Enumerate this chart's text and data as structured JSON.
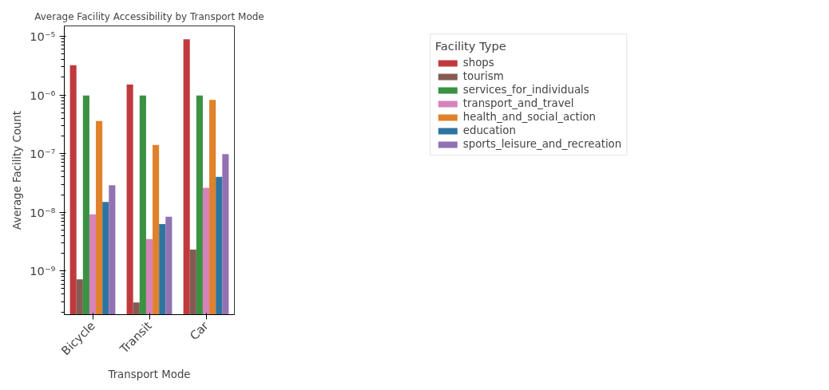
{
  "chart_data": {
    "type": "bar",
    "title": "Average Facility Accessibility by Transport Mode",
    "xlabel": "Transport Mode",
    "ylabel": "Average Facility Count",
    "legend_title": "Facility Type",
    "categories": [
      "Bicycle",
      "Transit",
      "Car"
    ],
    "series": [
      {
        "name": "shops",
        "color": "#c03a3d",
        "values": [
          3.2e-06,
          1.5e-06,
          8.9e-06
        ]
      },
      {
        "name": "tourism",
        "color": "#845b53",
        "values": [
          7.2e-10,
          2.9e-10,
          2.3e-09
        ]
      },
      {
        "name": "services_for_individuals",
        "color": "#3a9242",
        "values": [
          9.8e-07,
          9.8e-07,
          9.8e-07
        ]
      },
      {
        "name": "transport_and_travel",
        "color": "#d683b9",
        "values": [
          9.2e-09,
          3.5e-09,
          2.6e-08
        ]
      },
      {
        "name": "health_and_social_action",
        "color": "#e0812b",
        "values": [
          3.6e-07,
          1.4e-07,
          8.2e-07
        ]
      },
      {
        "name": "education",
        "color": "#2f74a1",
        "values": [
          1.5e-08,
          6.3e-09,
          4e-08
        ]
      },
      {
        "name": "sports_leisure_and_recreation",
        "color": "#9272b1",
        "values": [
          2.9e-08,
          8.4e-09,
          9.8e-08
        ]
      }
    ],
    "log": "y",
    "ylim": [
      1.8e-10,
      1.5e-05
    ],
    "yticks": [
      {
        "value": 1e-09,
        "label": "10⁻⁹"
      },
      {
        "value": 1e-08,
        "label": "10⁻⁸"
      },
      {
        "value": 1e-07,
        "label": "10⁻⁷"
      },
      {
        "value": 1e-06,
        "label": "10⁻⁶"
      },
      {
        "value": 1e-05,
        "label": "10⁻⁵"
      }
    ],
    "grid": false,
    "legend": "right"
  }
}
